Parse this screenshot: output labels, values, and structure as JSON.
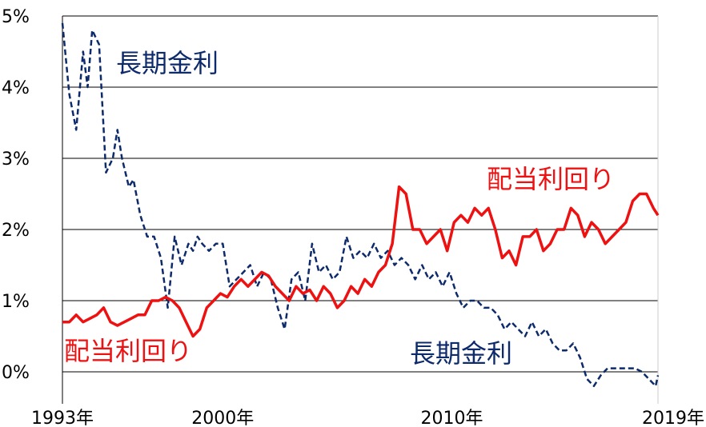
{
  "chart_data": {
    "type": "line",
    "y_ticks": [
      "5%",
      "4%",
      "3%",
      "2%",
      "1%",
      "0%"
    ],
    "y_values": [
      5,
      4,
      3,
      2,
      1,
      0
    ],
    "ylim": [
      -0.4,
      5
    ],
    "x_ticks": [
      "1993年",
      "2000年",
      "2010年",
      "2019年"
    ],
    "x_tick_values": [
      1993,
      2000,
      2010,
      2019
    ],
    "xlim": [
      1993,
      2019
    ],
    "grid": true,
    "series": [
      {
        "name": "長期金利",
        "color": "#0d2a6b",
        "style": "dashed",
        "annotations": [
          "長期金利",
          "長期金利"
        ],
        "x": [
          1993.0,
          1993.3,
          1993.6,
          1993.9,
          1994.1,
          1994.3,
          1994.6,
          1994.9,
          1995.2,
          1995.4,
          1995.6,
          1995.9,
          1996.1,
          1996.4,
          1996.7,
          1997.0,
          1997.3,
          1997.6,
          1997.9,
          1998.2,
          1998.5,
          1998.7,
          1998.9,
          1999.1,
          1999.4,
          1999.7,
          2000.0,
          2000.3,
          2000.6,
          2000.9,
          2001.2,
          2001.5,
          2001.8,
          2002.1,
          2002.4,
          2002.7,
          2003.0,
          2003.3,
          2003.6,
          2003.9,
          2004.2,
          2004.5,
          2004.8,
          2005.1,
          2005.4,
          2005.7,
          2006.0,
          2006.3,
          2006.6,
          2006.9,
          2007.2,
          2007.5,
          2007.8,
          2008.1,
          2008.4,
          2008.7,
          2009.0,
          2009.3,
          2009.6,
          2009.9,
          2010.2,
          2010.5,
          2010.8,
          2011.1,
          2011.4,
          2011.7,
          2012.0,
          2012.3,
          2012.6,
          2012.9,
          2013.2,
          2013.5,
          2013.8,
          2014.1,
          2014.4,
          2014.7,
          2015.0,
          2015.3,
          2015.6,
          2015.9,
          2016.2,
          2016.5,
          2016.8,
          2017.1,
          2017.4,
          2017.7,
          2018.0,
          2018.3,
          2018.6,
          2018.9,
          2019.0
        ],
        "values": [
          4.9,
          3.9,
          3.4,
          4.5,
          4.0,
          4.8,
          4.6,
          2.8,
          3.0,
          3.4,
          3.0,
          2.6,
          2.7,
          2.2,
          1.9,
          1.9,
          1.6,
          0.9,
          1.9,
          1.5,
          1.8,
          1.7,
          1.9,
          1.8,
          1.7,
          1.8,
          1.8,
          1.2,
          1.3,
          1.4,
          1.5,
          1.2,
          1.4,
          1.3,
          0.9,
          0.6,
          1.3,
          1.4,
          1.0,
          1.8,
          1.4,
          1.5,
          1.3,
          1.4,
          1.9,
          1.6,
          1.7,
          1.6,
          1.8,
          1.6,
          1.7,
          1.5,
          1.6,
          1.5,
          1.3,
          1.5,
          1.3,
          1.4,
          1.2,
          1.4,
          1.1,
          0.9,
          1.0,
          1.0,
          0.9,
          0.9,
          0.8,
          0.6,
          0.7,
          0.6,
          0.5,
          0.7,
          0.5,
          0.6,
          0.4,
          0.3,
          0.3,
          0.4,
          0.2,
          -0.1,
          -0.2,
          -0.05,
          0.05,
          0.05,
          0.05,
          0.05,
          0.05,
          0.0,
          -0.1,
          -0.2,
          -0.05
        ]
      },
      {
        "name": "配当利回り",
        "color": "#ee1111",
        "style": "solid",
        "annotations": [
          "配当利回り",
          "配当利回り"
        ],
        "x": [
          1993.0,
          1993.3,
          1993.6,
          1993.9,
          1994.2,
          1994.5,
          1994.8,
          1995.1,
          1995.4,
          1995.7,
          1996.0,
          1996.3,
          1996.6,
          1996.9,
          1997.2,
          1997.5,
          1997.8,
          1998.1,
          1998.4,
          1998.7,
          1999.0,
          1999.3,
          1999.6,
          1999.9,
          2000.2,
          2000.5,
          2000.8,
          2001.1,
          2001.4,
          2001.7,
          2002.0,
          2002.3,
          2002.6,
          2002.9,
          2003.2,
          2003.5,
          2003.8,
          2004.1,
          2004.4,
          2004.7,
          2005.0,
          2005.3,
          2005.6,
          2005.9,
          2006.2,
          2006.5,
          2006.8,
          2007.1,
          2007.4,
          2007.7,
          2008.0,
          2008.3,
          2008.6,
          2008.9,
          2009.2,
          2009.5,
          2009.8,
          2010.1,
          2010.4,
          2010.7,
          2011.0,
          2011.3,
          2011.6,
          2011.9,
          2012.2,
          2012.5,
          2012.8,
          2013.1,
          2013.4,
          2013.7,
          2014.0,
          2014.3,
          2014.6,
          2014.9,
          2015.2,
          2015.5,
          2015.8,
          2016.1,
          2016.4,
          2016.7,
          2017.0,
          2017.3,
          2017.6,
          2017.9,
          2018.2,
          2018.5,
          2018.8,
          2019.0
        ],
        "values": [
          0.7,
          0.7,
          0.8,
          0.7,
          0.75,
          0.8,
          0.9,
          0.7,
          0.65,
          0.7,
          0.75,
          0.8,
          0.8,
          1.0,
          1.0,
          1.05,
          1.0,
          0.9,
          0.7,
          0.5,
          0.6,
          0.9,
          1.0,
          1.1,
          1.05,
          1.2,
          1.3,
          1.2,
          1.3,
          1.4,
          1.35,
          1.2,
          1.1,
          1.0,
          1.2,
          1.1,
          1.15,
          1.0,
          1.2,
          1.1,
          0.9,
          1.0,
          1.2,
          1.1,
          1.3,
          1.2,
          1.4,
          1.5,
          1.8,
          2.6,
          2.5,
          2.0,
          2.0,
          1.8,
          1.9,
          2.0,
          1.7,
          2.1,
          2.2,
          2.1,
          2.3,
          2.2,
          2.3,
          2.0,
          1.6,
          1.7,
          1.5,
          1.9,
          1.9,
          2.0,
          1.7,
          1.8,
          2.0,
          2.0,
          2.3,
          2.2,
          1.9,
          2.1,
          2.0,
          1.8,
          1.9,
          2.0,
          2.1,
          2.4,
          2.5,
          2.5,
          2.3,
          2.2
        ]
      }
    ]
  }
}
